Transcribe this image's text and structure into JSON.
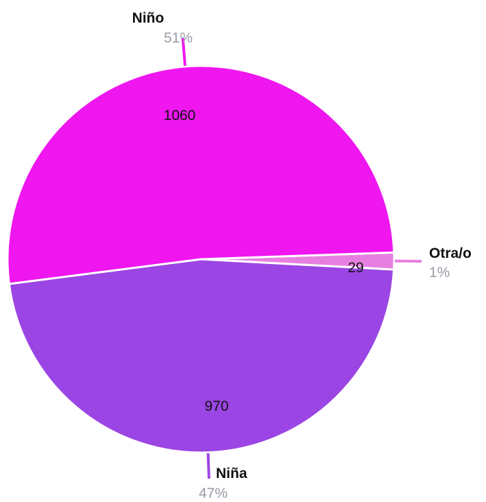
{
  "chart_data": {
    "type": "pie",
    "title": "",
    "slices": [
      {
        "label": "Niño",
        "value": 1060,
        "percent_label": "51%",
        "color": "#ef16ef"
      },
      {
        "label": "Otra/o",
        "value": 29,
        "percent_label": "1%",
        "color": "#e77fe0"
      },
      {
        "label": "Niña",
        "value": 970,
        "percent_label": "47%",
        "color": "#9b45e4"
      }
    ],
    "separator_color": "#ffffff",
    "leader_line_colors": [
      "#ef16ef",
      "#e77fe0",
      "#9b45e4"
    ],
    "legend": "none"
  }
}
